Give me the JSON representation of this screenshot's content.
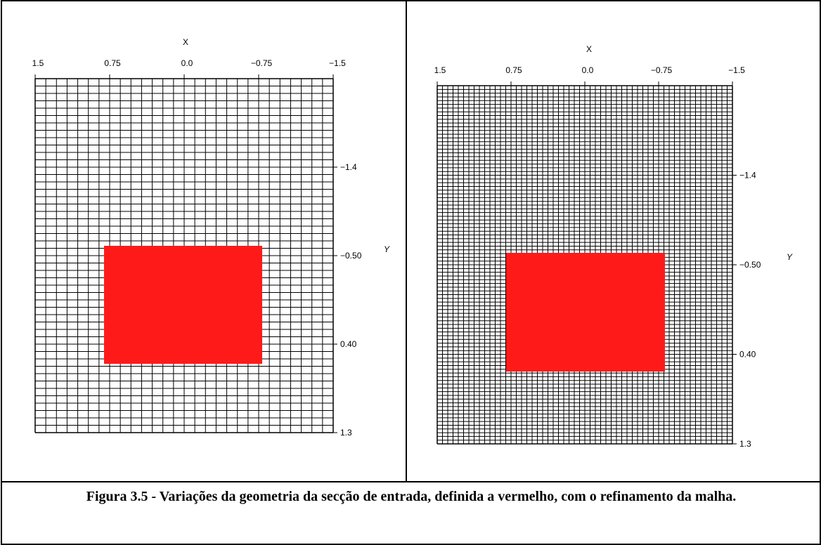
{
  "figure": {
    "caption": "Figura 3.5 - Variações da geometria da secção de entrada, definida a vermelho, com o refinamento da malha.",
    "panels": [
      {
        "x_axis_label": "X",
        "y_axis_label": "Y",
        "x_ticks": [
          "1.5",
          "0.75",
          "0.0",
          "−0.75",
          "−1.5"
        ],
        "y_ticks": [
          "−1.4",
          "−0.50",
          "0.40",
          "1.3"
        ],
        "grid_columns": 28,
        "grid_rows": 48,
        "inlet_color": "#ff1a1a"
      },
      {
        "x_axis_label": "X",
        "y_axis_label": "Y",
        "x_ticks": [
          "1.5",
          "0.75",
          "0.0",
          "−0.75",
          "−1.5"
        ],
        "y_ticks": [
          "−1.4",
          "−0.50",
          "0.40",
          "1.3"
        ],
        "grid_columns": 56,
        "grid_rows": 96,
        "inlet_color": "#ff1a1a"
      }
    ]
  }
}
